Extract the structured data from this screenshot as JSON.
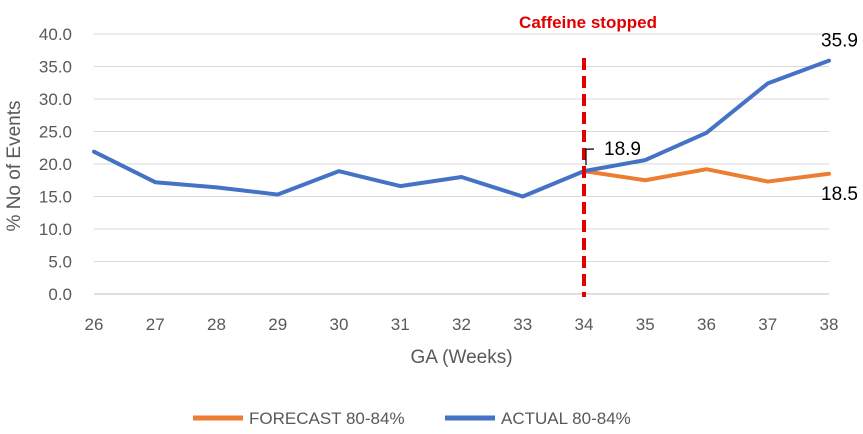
{
  "chart_data": {
    "type": "line",
    "title": "",
    "xlabel": "GA (Weeks)",
    "ylabel": "% No of Events",
    "x": [
      26,
      27,
      28,
      29,
      30,
      31,
      32,
      33,
      34,
      35,
      36,
      37,
      38
    ],
    "x_tick_labels": [
      "26",
      "27",
      "28",
      "29",
      "30",
      "31",
      "32",
      "33",
      "34",
      "35",
      "36",
      "37",
      "38"
    ],
    "ylim": [
      0,
      40
    ],
    "y_ticks": [
      0,
      5,
      10,
      15,
      20,
      25,
      30,
      35,
      40
    ],
    "y_tick_labels": [
      "0.0",
      "5.0",
      "10.0",
      "15.0",
      "20.0",
      "25.0",
      "30.0",
      "35.0",
      "40.0"
    ],
    "grid": true,
    "series": [
      {
        "name": "FORECAST 80-84%",
        "color": "#ED7D31",
        "x": [
          34,
          35,
          36,
          37,
          38
        ],
        "values": [
          18.9,
          17.5,
          19.2,
          17.3,
          18.5
        ]
      },
      {
        "name": "ACTUAL 80-84%",
        "color": "#4472C4",
        "x": [
          26,
          27,
          28,
          29,
          30,
          31,
          32,
          33,
          34,
          35,
          36,
          37,
          38
        ],
        "values": [
          21.9,
          17.2,
          16.4,
          15.3,
          18.9,
          16.6,
          18.0,
          15.0,
          18.9,
          20.6,
          24.8,
          32.4,
          35.9
        ]
      }
    ],
    "data_labels": [
      {
        "series": "ACTUAL 80-84%",
        "x": 34,
        "value": 18.9,
        "text": "18.9"
      },
      {
        "series": "ACTUAL 80-84%",
        "x": 38,
        "value": 35.9,
        "text": "35.9"
      },
      {
        "series": "FORECAST 80-84%",
        "x": 38,
        "value": 18.5,
        "text": "18.5"
      }
    ],
    "annotations": [
      {
        "type": "vertical_line",
        "x": 34,
        "style": "dashed",
        "color": "#E00000",
        "text": "Caffeine stopped"
      }
    ],
    "legend": {
      "position": "bottom"
    }
  }
}
